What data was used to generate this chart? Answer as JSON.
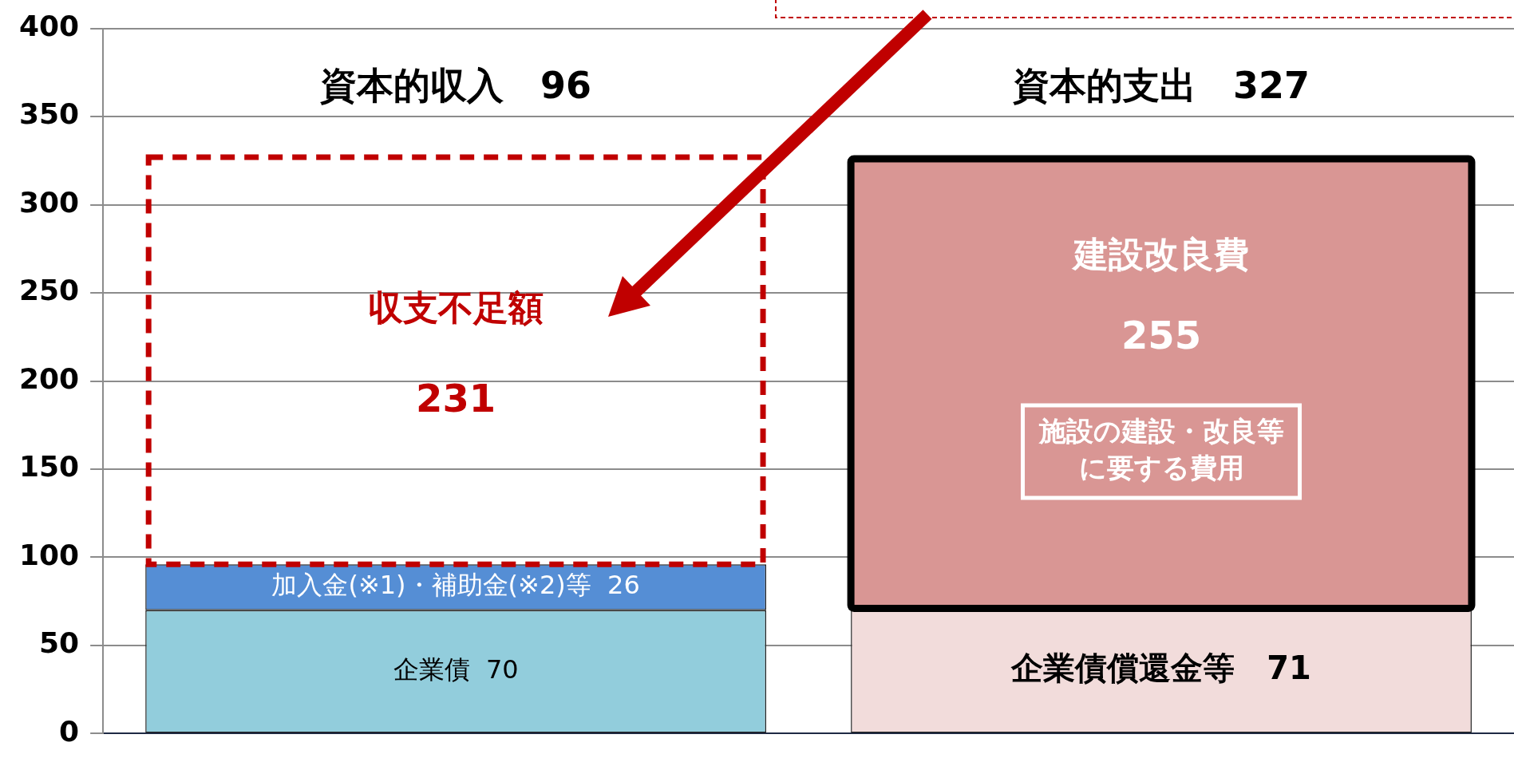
{
  "chart_data": {
    "type": "bar",
    "stacked": true,
    "categories": [
      "資本的収入　96",
      "資本的支出　327"
    ],
    "series": [
      {
        "colors": [
          "#92cddc",
          "#f2dcdb"
        ],
        "values": [
          70,
          71
        ],
        "value_labels": [
          "企業債  70",
          "企業債償還金等　71"
        ]
      },
      {
        "colors": [
          "#558ed5",
          "#d99694"
        ],
        "values": [
          26,
          255
        ],
        "value_labels": [
          "加入金(※1)・補助金(※2)等  26",
          "255"
        ]
      },
      {
        "color": "#c00000",
        "line_style": "dashed",
        "values": [
          231,
          null
        ],
        "value_labels": [
          "231",
          null
        ]
      }
    ],
    "ylim": [
      0,
      400
    ],
    "yticks": [
      0,
      50,
      100,
      150,
      200,
      250,
      300,
      350,
      400
    ],
    "grid": "y",
    "legend": false,
    "annotations": [
      "収支不足額",
      "建設改良費",
      "施設の建設・改良等に要する費用"
    ]
  }
}
